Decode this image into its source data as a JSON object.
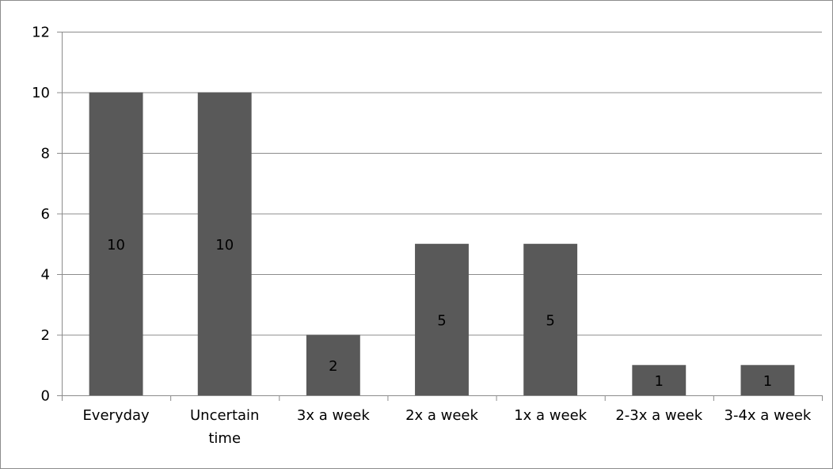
{
  "chart_data": {
    "type": "bar",
    "title": "",
    "xlabel": "",
    "ylabel": "",
    "categories": [
      [
        "Everyday"
      ],
      [
        "Uncertain",
        "time"
      ],
      [
        "3x a week"
      ],
      [
        "2x a week"
      ],
      [
        "1x a week"
      ],
      [
        "2-3x a week"
      ],
      [
        "3-4x a week"
      ]
    ],
    "values": [
      10,
      10,
      2,
      5,
      5,
      1,
      1
    ],
    "data_labels": [
      "10",
      "10",
      "2",
      "5",
      "5",
      "1",
      "1"
    ],
    "ylim": [
      0,
      12
    ],
    "yticks": [
      0,
      2,
      4,
      6,
      8,
      10,
      12
    ],
    "grid": true,
    "legend": "none",
    "bar_color": "#595959",
    "gridline_color": "#8c8c8c"
  }
}
